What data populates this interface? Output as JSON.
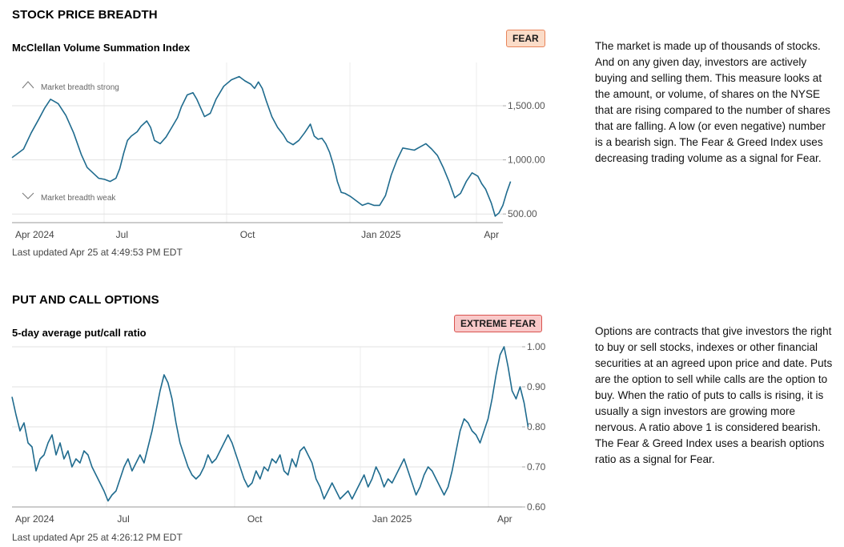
{
  "sections": [
    {
      "title": "STOCK PRICE BREADTH",
      "chart_title": "McClellan Volume Summation Index",
      "badge": "FEAR",
      "badge_color": "#fbdcc8",
      "description": "The market is made up of thousands of stocks. And on any given day, investors are actively buying and selling them. This measure looks at the amount, or volume, of shares on the NYSE that are rising compared to the number of shares that are falling. A low (or even negative) number is a bearish sign. The Fear & Greed Index uses decreasing trading volume as a signal for Fear.",
      "updated": "Last updated Apr 25 at 4:49:53 PM EDT",
      "annotation_high": "Market breadth strong",
      "annotation_low": "Market breadth weak"
    },
    {
      "title": "PUT AND CALL OPTIONS",
      "chart_title": "5-day average put/call ratio",
      "badge": "EXTREME FEAR",
      "badge_color": "#f9c9c9",
      "description": "Options are contracts that give investors the right to buy or sell stocks, indexes or other financial securities at an agreed upon price and date. Puts are the option to sell while calls are the option to buy. When the ratio of puts to calls is rising, it is usually a sign investors are growing more nervous. A ratio above 1 is considered bearish. The Fear & Greed Index uses a bearish options ratio as a signal for Fear.",
      "updated": "Last updated Apr 25 at 4:26:12 PM EDT"
    }
  ],
  "chart_data": [
    {
      "type": "line",
      "title": "McClellan Volume Summation Index",
      "line_color": "#1f6b8e",
      "x_ticks": [
        "Apr 2024",
        "Jul",
        "Oct",
        "Jan 2025",
        "Apr"
      ],
      "y_ticks": [
        "1,500.00",
        "1,000.00",
        "500.00"
      ],
      "y_tick_values": [
        1500,
        1000,
        500
      ],
      "ylim": [
        420,
        1900
      ],
      "x_range": [
        0,
        255
      ],
      "series": [
        {
          "values": [
            [
              0,
              1020
            ],
            [
              6,
              1100
            ],
            [
              10,
              1250
            ],
            [
              14,
              1380
            ],
            [
              17,
              1480
            ],
            [
              20,
              1560
            ],
            [
              24,
              1520
            ],
            [
              28,
              1410
            ],
            [
              32,
              1250
            ],
            [
              36,
              1050
            ],
            [
              39,
              930
            ],
            [
              42,
              880
            ],
            [
              45,
              830
            ],
            [
              48,
              820
            ],
            [
              51,
              800
            ],
            [
              54,
              830
            ],
            [
              56,
              920
            ],
            [
              58,
              1060
            ],
            [
              60,
              1180
            ],
            [
              62,
              1220
            ],
            [
              65,
              1260
            ],
            [
              67,
              1310
            ],
            [
              70,
              1360
            ],
            [
              72,
              1300
            ],
            [
              74,
              1180
            ],
            [
              77,
              1150
            ],
            [
              80,
              1210
            ],
            [
              83,
              1300
            ],
            [
              86,
              1390
            ],
            [
              88,
              1490
            ],
            [
              91,
              1600
            ],
            [
              94,
              1620
            ],
            [
              96,
              1560
            ],
            [
              98,
              1480
            ],
            [
              100,
              1400
            ],
            [
              103,
              1430
            ],
            [
              106,
              1560
            ],
            [
              110,
              1680
            ],
            [
              114,
              1740
            ],
            [
              118,
              1770
            ],
            [
              121,
              1730
            ],
            [
              124,
              1700
            ],
            [
              126,
              1660
            ],
            [
              128,
              1720
            ],
            [
              130,
              1660
            ],
            [
              132,
              1550
            ],
            [
              135,
              1400
            ],
            [
              138,
              1300
            ],
            [
              141,
              1230
            ],
            [
              143,
              1170
            ],
            [
              146,
              1140
            ],
            [
              149,
              1180
            ],
            [
              152,
              1250
            ],
            [
              155,
              1330
            ],
            [
              157,
              1220
            ],
            [
              159,
              1190
            ],
            [
              161,
              1200
            ],
            [
              163,
              1150
            ],
            [
              165,
              1070
            ],
            [
              167,
              950
            ],
            [
              169,
              800
            ],
            [
              171,
              700
            ],
            [
              173,
              690
            ],
            [
              176,
              660
            ],
            [
              179,
              620
            ],
            [
              182,
              580
            ],
            [
              185,
              600
            ],
            [
              188,
              580
            ],
            [
              191,
              580
            ],
            [
              194,
              670
            ],
            [
              197,
              860
            ],
            [
              200,
              1000
            ],
            [
              203,
              1110
            ],
            [
              206,
              1100
            ],
            [
              209,
              1090
            ],
            [
              212,
              1120
            ],
            [
              215,
              1150
            ],
            [
              218,
              1100
            ],
            [
              221,
              1040
            ],
            [
              224,
              930
            ],
            [
              227,
              800
            ],
            [
              230,
              650
            ],
            [
              233,
              690
            ],
            [
              236,
              800
            ],
            [
              239,
              880
            ],
            [
              242,
              850
            ],
            [
              244,
              780
            ],
            [
              246,
              730
            ],
            [
              249,
              600
            ],
            [
              251,
              480
            ],
            [
              253,
              510
            ],
            [
              255,
              580
            ],
            [
              257,
              700
            ],
            [
              259,
              800
            ]
          ]
        }
      ]
    },
    {
      "type": "line",
      "title": "5-day average put/call ratio",
      "line_color": "#1f6b8e",
      "x_ticks": [
        "Apr 2024",
        "Jul",
        "Oct",
        "Jan 2025",
        "Apr"
      ],
      "y_ticks": [
        "1.00",
        "0.90",
        "0.80",
        "0.70",
        "0.60"
      ],
      "y_tick_values": [
        1.0,
        0.9,
        0.8,
        0.7,
        0.6
      ],
      "ylim": [
        0.6,
        1.0
      ],
      "x_range": [
        0,
        255
      ],
      "series": [
        {
          "values": [
            [
              0,
              0.875
            ],
            [
              2,
              0.83
            ],
            [
              4,
              0.79
            ],
            [
              6,
              0.81
            ],
            [
              8,
              0.76
            ],
            [
              10,
              0.75
            ],
            [
              12,
              0.69
            ],
            [
              14,
              0.72
            ],
            [
              16,
              0.73
            ],
            [
              18,
              0.76
            ],
            [
              20,
              0.78
            ],
            [
              22,
              0.73
            ],
            [
              24,
              0.76
            ],
            [
              26,
              0.72
            ],
            [
              28,
              0.74
            ],
            [
              30,
              0.7
            ],
            [
              32,
              0.72
            ],
            [
              34,
              0.71
            ],
            [
              36,
              0.74
            ],
            [
              38,
              0.73
            ],
            [
              40,
              0.7
            ],
            [
              42,
              0.68
            ],
            [
              44,
              0.66
            ],
            [
              46,
              0.64
            ],
            [
              48,
              0.615
            ],
            [
              50,
              0.63
            ],
            [
              52,
              0.64
            ],
            [
              54,
              0.67
            ],
            [
              56,
              0.7
            ],
            [
              58,
              0.72
            ],
            [
              60,
              0.69
            ],
            [
              62,
              0.71
            ],
            [
              64,
              0.73
            ],
            [
              66,
              0.71
            ],
            [
              68,
              0.75
            ],
            [
              70,
              0.79
            ],
            [
              72,
              0.84
            ],
            [
              74,
              0.89
            ],
            [
              76,
              0.93
            ],
            [
              78,
              0.91
            ],
            [
              80,
              0.87
            ],
            [
              82,
              0.81
            ],
            [
              84,
              0.76
            ],
            [
              86,
              0.73
            ],
            [
              88,
              0.7
            ],
            [
              90,
              0.68
            ],
            [
              92,
              0.67
            ],
            [
              94,
              0.68
            ],
            [
              96,
              0.7
            ],
            [
              98,
              0.73
            ],
            [
              100,
              0.71
            ],
            [
              102,
              0.72
            ],
            [
              104,
              0.74
            ],
            [
              106,
              0.76
            ],
            [
              108,
              0.78
            ],
            [
              110,
              0.76
            ],
            [
              112,
              0.73
            ],
            [
              114,
              0.7
            ],
            [
              116,
              0.67
            ],
            [
              118,
              0.65
            ],
            [
              120,
              0.66
            ],
            [
              122,
              0.69
            ],
            [
              124,
              0.67
            ],
            [
              126,
              0.7
            ],
            [
              128,
              0.69
            ],
            [
              130,
              0.72
            ],
            [
              132,
              0.71
            ],
            [
              134,
              0.73
            ],
            [
              136,
              0.69
            ],
            [
              138,
              0.68
            ],
            [
              140,
              0.72
            ],
            [
              142,
              0.7
            ],
            [
              144,
              0.74
            ],
            [
              146,
              0.75
            ],
            [
              148,
              0.73
            ],
            [
              150,
              0.71
            ],
            [
              152,
              0.67
            ],
            [
              154,
              0.65
            ],
            [
              156,
              0.62
            ],
            [
              158,
              0.64
            ],
            [
              160,
              0.66
            ],
            [
              162,
              0.64
            ],
            [
              164,
              0.62
            ],
            [
              166,
              0.63
            ],
            [
              168,
              0.64
            ],
            [
              170,
              0.62
            ],
            [
              172,
              0.64
            ],
            [
              174,
              0.66
            ],
            [
              176,
              0.68
            ],
            [
              178,
              0.65
            ],
            [
              180,
              0.67
            ],
            [
              182,
              0.7
            ],
            [
              184,
              0.68
            ],
            [
              186,
              0.65
            ],
            [
              188,
              0.67
            ],
            [
              190,
              0.66
            ],
            [
              192,
              0.68
            ],
            [
              194,
              0.7
            ],
            [
              196,
              0.72
            ],
            [
              198,
              0.69
            ],
            [
              200,
              0.66
            ],
            [
              202,
              0.63
            ],
            [
              204,
              0.65
            ],
            [
              206,
              0.68
            ],
            [
              208,
              0.7
            ],
            [
              210,
              0.69
            ],
            [
              212,
              0.67
            ],
            [
              214,
              0.65
            ],
            [
              216,
              0.63
            ],
            [
              218,
              0.65
            ],
            [
              220,
              0.69
            ],
            [
              222,
              0.74
            ],
            [
              224,
              0.79
            ],
            [
              226,
              0.82
            ],
            [
              228,
              0.81
            ],
            [
              230,
              0.79
            ],
            [
              232,
              0.78
            ],
            [
              234,
              0.76
            ],
            [
              236,
              0.79
            ],
            [
              238,
              0.82
            ],
            [
              240,
              0.87
            ],
            [
              242,
              0.93
            ],
            [
              244,
              0.98
            ],
            [
              246,
              1.0
            ],
            [
              248,
              0.95
            ],
            [
              250,
              0.89
            ],
            [
              252,
              0.87
            ],
            [
              254,
              0.9
            ],
            [
              256,
              0.86
            ],
            [
              258,
              0.8
            ]
          ]
        }
      ]
    }
  ]
}
